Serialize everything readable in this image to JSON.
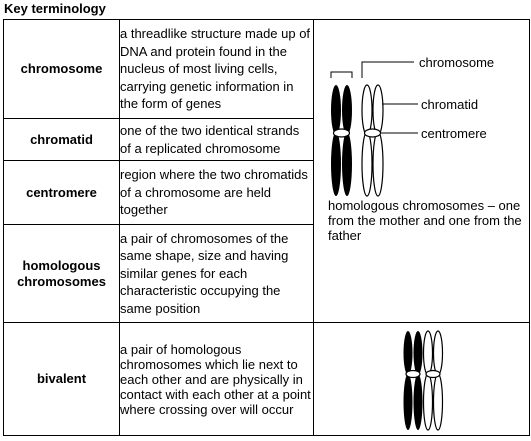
{
  "heading": "Key terminology",
  "rows": [
    {
      "term": "chromosome",
      "definition": "a threadlike structure made up of DNA and protein found in the nucleus of most living cells, carrying genetic information in the form of genes"
    },
    {
      "term": "chromatid",
      "definition": "one of the two identical strands of a replicated chromosome"
    },
    {
      "term": "centromere",
      "definition": "region where the two chromatids of a chromosome are held together"
    },
    {
      "term": "homologous chromosomes",
      "definition": "a pair of chromosomes of the same shape, size and having similar genes for each characteristic occupying the same position"
    },
    {
      "term": "bivalent",
      "definition": "a pair of homologous chromosomes which lie next to each other and are physically in contact with each other at a point where crossing over will occur"
    }
  ],
  "diagram": {
    "labels": {
      "chromosome": "chromosome",
      "chromatid": "chromatid",
      "centromere": "centromere"
    },
    "caption": "homologous chromosomes – one from the mother and one from the father"
  }
}
